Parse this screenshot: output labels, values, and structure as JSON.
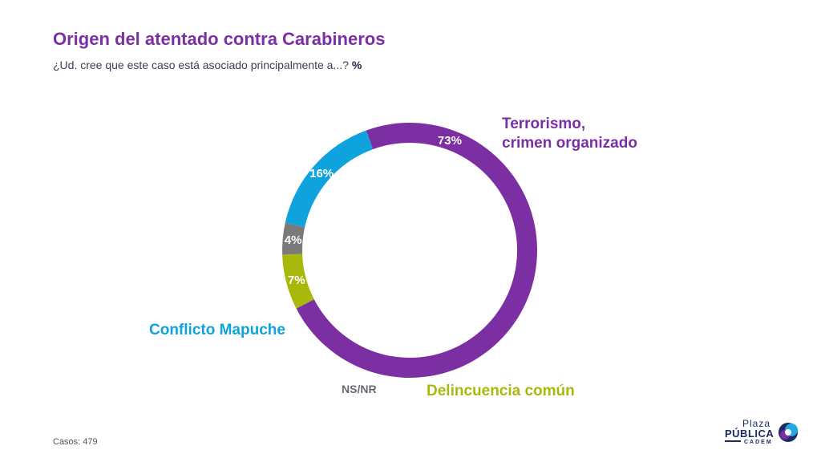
{
  "chart_data": {
    "type": "pie",
    "donut": true,
    "title": "Origen del atentado contra Carabineros",
    "subtitle": "¿Ud. cree que este caso está asociado principalmente a...?",
    "unit_label": "%",
    "categories": [
      "Terrorismo, crimen organizado",
      "Delincuencia común",
      "NS/NR",
      "Conflicto Mapuche"
    ],
    "values": [
      73,
      7,
      4,
      16
    ],
    "value_labels": [
      "73%",
      "7%",
      "4%",
      "16%"
    ],
    "colors": [
      "#7B2FA3",
      "#A9B80A",
      "#7a7a7a",
      "#0FA3DD"
    ]
  },
  "labels": {
    "terror_line1": "Terrorismo,",
    "terror_line2": "crimen organizado",
    "mapuche": "Conflicto Mapuche",
    "nsnr": "NS/NR",
    "delincuencia": "Delincuencia común"
  },
  "footer": {
    "casos_label": "Casos:",
    "casos_value": "479"
  },
  "logo": {
    "line1": "Plaza",
    "line2": "PÚBLICA",
    "line3": "CADEM"
  }
}
